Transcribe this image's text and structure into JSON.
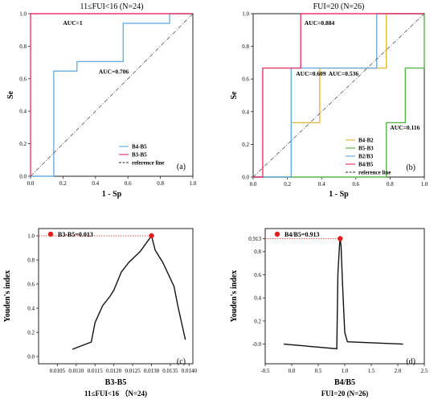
{
  "chart_data": [
    {
      "panel": "(a)",
      "type": "line",
      "title": "11≤FUI<16 (N=24)",
      "xlabel": "1 - Sp",
      "ylabel": "Se",
      "xlim": [
        0,
        1
      ],
      "ylim": [
        0,
        1
      ],
      "xticks": [
        "0.0",
        "0.2",
        "0.4",
        "0.6",
        "0.8",
        "1.0"
      ],
      "yticks": [
        "0.0",
        "0.2",
        "0.4",
        "0.6",
        "0.8",
        "1.0"
      ],
      "legend_position": "bottom-right",
      "series": [
        {
          "name": "B4-B5",
          "color": "#6aaee0",
          "x": [
            0,
            0.143,
            0.143,
            0.286,
            0.286,
            0.571,
            0.571,
            0.857,
            0.857,
            1.0
          ],
          "y": [
            0,
            0,
            0.647,
            0.647,
            0.706,
            0.706,
            0.941,
            0.941,
            1.0,
            1.0
          ]
        },
        {
          "name": "B3-B5",
          "color": "#e8396a",
          "x": [
            0,
            0,
            1.0
          ],
          "y": [
            0,
            1.0,
            1.0
          ]
        },
        {
          "name": "reference line",
          "color": "#555555",
          "dashed": true,
          "x": [
            0,
            1
          ],
          "y": [
            0,
            1
          ]
        }
      ],
      "annotations": [
        {
          "text": "AUC=1",
          "x": 0.2,
          "y": 0.93
        },
        {
          "text": "AUC=0.706",
          "x": 0.42,
          "y": 0.63
        }
      ]
    },
    {
      "panel": "(b)",
      "type": "line",
      "title": "FUI=20 (N=26)",
      "xlabel": "1 - Sp",
      "ylabel": "Se",
      "xlim": [
        0,
        1
      ],
      "ylim": [
        0,
        1
      ],
      "xticks": [
        "0.0",
        "0.2",
        "0.4",
        "0.6",
        "0.8",
        "1.0"
      ],
      "yticks": [
        "0.0",
        "0.2",
        "0.4",
        "0.6",
        "0.8",
        "1.0"
      ],
      "legend_position": "bottom-right",
      "series": [
        {
          "name": "B4-B2",
          "color": "#e2b93b",
          "x": [
            0,
            0.222,
            0.222,
            0.389,
            0.389,
            0.778,
            0.778,
            1.0
          ],
          "y": [
            0,
            0,
            0.333,
            0.333,
            0.667,
            0.667,
            1.0,
            1.0
          ]
        },
        {
          "name": "B5-B3",
          "color": "#59b648",
          "x": [
            0,
            0.778,
            0.778,
            0.889,
            0.889,
            1.0,
            1.0
          ],
          "y": [
            0,
            0,
            0.333,
            0.333,
            0.667,
            0.667,
            1.0
          ]
        },
        {
          "name": "B2/B3",
          "color": "#6aaee0",
          "x": [
            0,
            0.222,
            0.222,
            0.556,
            0.556,
            0.722,
            0.722,
            1.0
          ],
          "y": [
            0,
            0,
            0.667,
            0.667,
            0.667,
            0.667,
            1.0,
            1.0
          ]
        },
        {
          "name": "B4/B5",
          "color": "#e8396a",
          "x": [
            0,
            0.056,
            0.056,
            0.278,
            0.278,
            1.0
          ],
          "y": [
            0,
            0,
            0.667,
            0.667,
            1.0,
            1.0
          ]
        },
        {
          "name": "reference line",
          "color": "#555555",
          "dashed": true,
          "x": [
            0,
            1
          ],
          "y": [
            0,
            1
          ]
        }
      ],
      "annotations": [
        {
          "text": "AUC=0.884",
          "x": 0.3,
          "y": 0.93
        },
        {
          "text": "AUC=0.609",
          "x": 0.25,
          "y": 0.62
        },
        {
          "text": "AUC=0.536",
          "x": 0.44,
          "y": 0.62
        },
        {
          "text": "AUC=0.116",
          "x": 0.8,
          "y": 0.29
        }
      ]
    },
    {
      "panel": "(c)",
      "type": "line",
      "title": "",
      "xlabel": "B3-B5",
      "sublabel": "11≤FUI<16 （N=24)",
      "ylabel": "Youden's index",
      "xlim": [
        0.01,
        0.0141
      ],
      "ylim": [
        -0.06,
        1.06
      ],
      "xticks": [
        "0.0105",
        "0.0110",
        "0.0115",
        "0.0120",
        "0.0125",
        "0.0130",
        "0.0135",
        "0.0140"
      ],
      "xtick_values": [
        0.0105,
        0.011,
        0.0115,
        0.012,
        0.0125,
        0.013,
        0.0135,
        0.014
      ],
      "yticks": [
        "0.0",
        "0.2",
        "0.4",
        "0.6",
        "0.8",
        "1.0"
      ],
      "ytick_values": [
        0,
        0.2,
        0.4,
        0.6,
        0.8,
        1.0
      ],
      "series": [
        {
          "name": "",
          "color": "#111111",
          "x": [
            0.0109,
            0.0114,
            0.0115,
            0.0117,
            0.0119,
            0.012,
            0.0122,
            0.0124,
            0.0127,
            0.013,
            0.0131,
            0.0133,
            0.0136,
            0.0137,
            0.0139
          ],
          "y": [
            0.06,
            0.12,
            0.28,
            0.42,
            0.5,
            0.55,
            0.7,
            0.78,
            0.87,
            1.0,
            0.88,
            0.78,
            0.58,
            0.42,
            0.14
          ]
        }
      ],
      "optimal_point": {
        "x": 0.013,
        "y": 1.0,
        "color": "#e51c1c"
      },
      "legend_label": "B3-B5=0.013",
      "legend_position": "top-left"
    },
    {
      "panel": "(d)",
      "type": "line",
      "title": "",
      "xlabel": "B4/B5",
      "sublabel": "FUI=20 (N=26)",
      "ylabel": "Youden's index",
      "xlim": [
        -0.5,
        2.5
      ],
      "ylim": [
        -0.17,
        1.0
      ],
      "xticks": [
        "-0.5",
        "0.0",
        "0.5",
        "1.0",
        "1.5",
        "2.0",
        "2.5"
      ],
      "xtick_values": [
        -0.5,
        0,
        0.5,
        1.0,
        1.5,
        2.0,
        2.5
      ],
      "yticks": [
        "-0.0",
        "0.2",
        "0.4",
        "0.6",
        "0.8",
        "0.913"
      ],
      "ytick_values": [
        0,
        0.2,
        0.4,
        0.6,
        0.8,
        0.913
      ],
      "series": [
        {
          "name": "",
          "color": "#111111",
          "x": [
            -0.15,
            0.85,
            0.87,
            0.9,
            0.913,
            0.93,
            0.96,
            1.0,
            1.05,
            2.1
          ],
          "y": [
            0.0,
            -0.04,
            0.6,
            0.85,
            0.913,
            0.85,
            0.5,
            0.1,
            0.02,
            0.0
          ]
        }
      ],
      "optimal_point": {
        "x": 0.913,
        "y": 0.913,
        "color": "#e51c1c"
      },
      "legend_label": "B4/B5=0.913",
      "legend_position": "top-left"
    }
  ]
}
